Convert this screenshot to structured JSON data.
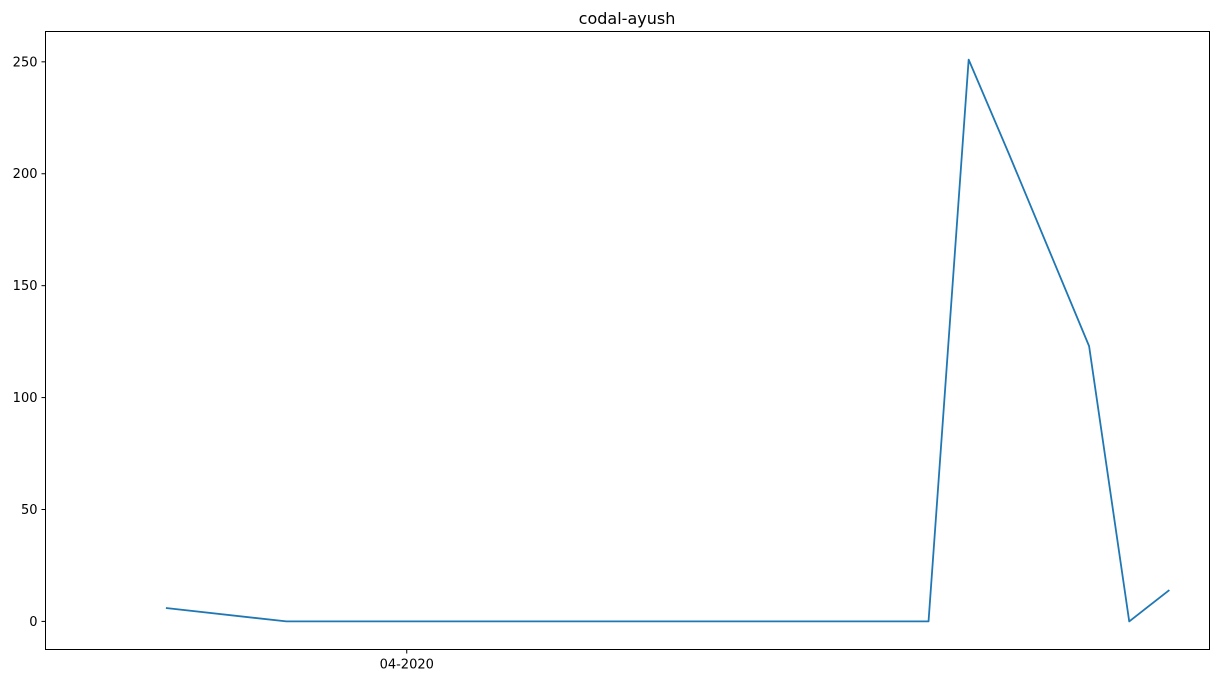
{
  "chart_data": {
    "type": "line",
    "title": "codal-ayush",
    "xlabel": "",
    "ylabel": "",
    "x": [
      "2020-03-26",
      "2020-03-29",
      "2020-04-01",
      "2020-04-04",
      "2020-04-07",
      "2020-04-10",
      "2020-04-13",
      "2020-04-14",
      "2020-04-15",
      "2020-04-16",
      "2020-04-17",
      "2020-04-18",
      "2020-04-19",
      "2020-04-20"
    ],
    "series": [
      {
        "values": [
          6,
          0,
          0,
          0,
          0,
          0,
          0,
          0,
          251,
          209,
          166,
          123,
          0,
          14
        ],
        "color": "#1f77b4"
      }
    ],
    "xticks": [
      {
        "value": "2020-04-01",
        "label": "04-2020"
      }
    ],
    "yticks": [
      0,
      50,
      100,
      150,
      200,
      250
    ],
    "ylim": [
      -12.55,
      263.55
    ],
    "xlim": [
      "2020-03-23",
      "2020-04-21"
    ],
    "grid": false,
    "legend": "none"
  }
}
